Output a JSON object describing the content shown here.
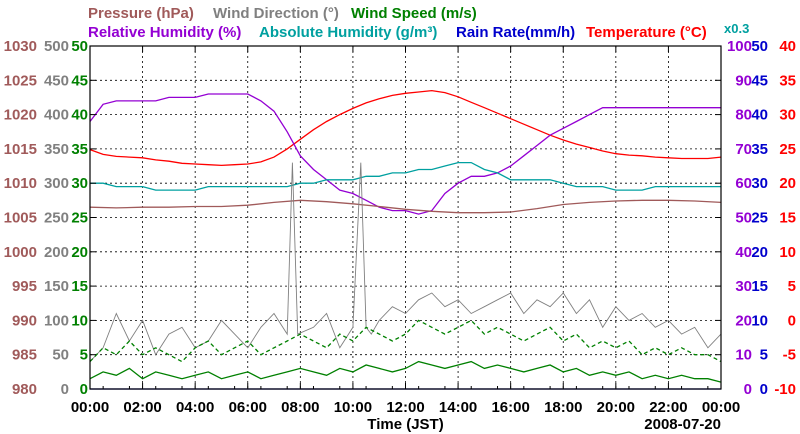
{
  "chart_data": {
    "type": "line",
    "date": "2008-07-20",
    "xlabel": "Time (JST)",
    "x_ticks": [
      "00:00",
      "02:00",
      "04:00",
      "06:00",
      "08:00",
      "10:00",
      "12:00",
      "14:00",
      "16:00",
      "18:00",
      "20:00",
      "22:00",
      "00:00"
    ],
    "grid": true,
    "legend_placement": "top",
    "legend": [
      {
        "name": "Pressure (hPa)",
        "color": "#a05a5a"
      },
      {
        "name": "Wind Direction (°)",
        "color": "#808080"
      },
      {
        "name": "Wind Speed (m/s)",
        "color": "#008000"
      },
      {
        "name": "Relative Humidity (%)",
        "color": "#9400d3"
      },
      {
        "name": "Absolute Humidity (g/m³)",
        "color": "#00a0a0",
        "scale_note": "x0.3"
      },
      {
        "name": "Rain Rate(mm/h)",
        "color": "#0000cc"
      },
      {
        "name": "Temperature (°C)",
        "color": "#ff0000"
      }
    ],
    "axes": [
      {
        "id": "pressure",
        "side": "left",
        "color": "#a05a5a",
        "range": [
          980,
          1030
        ],
        "ticks": [
          "980",
          "985",
          "990",
          "995",
          "1000",
          "1005",
          "1010",
          "1015",
          "1020",
          "1025",
          "1030"
        ]
      },
      {
        "id": "wind_direction",
        "side": "left",
        "color": "#808080",
        "range": [
          0,
          500
        ],
        "ticks": [
          "0",
          "50",
          "100",
          "150",
          "200",
          "250",
          "300",
          "350",
          "400",
          "450",
          "500"
        ]
      },
      {
        "id": "wind_speed",
        "side": "left",
        "color": "#008000",
        "range": [
          0,
          50
        ],
        "ticks": [
          "0",
          "5",
          "10",
          "15",
          "20",
          "25",
          "30",
          "35",
          "40",
          "45",
          "50"
        ]
      },
      {
        "id": "humidity",
        "side": "right",
        "color": "#9400d3",
        "range": [
          0,
          100
        ],
        "ticks": [
          "0",
          "10",
          "20",
          "30",
          "40",
          "50",
          "60",
          "70",
          "80",
          "90",
          "100"
        ]
      },
      {
        "id": "rain_rate",
        "side": "right",
        "color": "#0000cc",
        "range": [
          0,
          50
        ],
        "ticks": [
          "0",
          "5",
          "10",
          "15",
          "20",
          "25",
          "30",
          "35",
          "40",
          "45",
          "50"
        ]
      },
      {
        "id": "temperature",
        "side": "right",
        "color": "#ff0000",
        "range": [
          -10,
          40
        ],
        "ticks": [
          "-10",
          "-5",
          "0",
          "5",
          "10",
          "15",
          "20",
          "25",
          "30",
          "35",
          "40"
        ]
      }
    ],
    "series": [
      {
        "name": "Temperature (°C)",
        "axis": "temperature",
        "color": "#ff0000",
        "x": [
          0,
          0.5,
          1,
          1.5,
          2,
          2.5,
          3,
          3.5,
          4,
          4.5,
          5,
          5.5,
          6,
          6.5,
          7,
          7.5,
          8,
          8.5,
          9,
          9.5,
          10,
          10.5,
          11,
          11.5,
          12,
          12.5,
          13,
          13.5,
          14,
          14.5,
          15,
          15.5,
          16,
          16.5,
          17,
          17.5,
          18,
          18.5,
          19,
          19.5,
          20,
          20.5,
          21,
          21.5,
          22,
          22.5,
          23,
          23.5,
          24
        ],
        "y": [
          24.9,
          24.2,
          23.9,
          23.8,
          23.7,
          23.4,
          23.2,
          22.9,
          22.8,
          22.7,
          22.6,
          22.7,
          22.8,
          23.1,
          23.8,
          25.0,
          26.4,
          27.8,
          29.0,
          30.0,
          30.9,
          31.7,
          32.3,
          32.8,
          33.1,
          33.3,
          33.5,
          33.2,
          32.6,
          31.8,
          31.0,
          30.2,
          29.4,
          28.6,
          27.8,
          27.0,
          26.3,
          25.7,
          25.2,
          24.7,
          24.3,
          24.1,
          24.0,
          23.8,
          23.7,
          23.6,
          23.6,
          23.6,
          23.8
        ]
      },
      {
        "name": "Relative Humidity (%)",
        "axis": "humidity",
        "color": "#9400d3",
        "x": [
          0,
          0.5,
          1,
          1.5,
          2,
          2.5,
          3,
          3.5,
          4,
          4.5,
          5,
          5.5,
          6,
          6.5,
          7,
          7.5,
          8,
          8.5,
          9,
          9.5,
          10,
          10.5,
          11,
          11.5,
          12,
          12.5,
          13,
          13.5,
          14,
          14.5,
          15,
          15.5,
          16,
          16.5,
          17,
          17.5,
          18,
          18.5,
          19,
          19.5,
          20,
          20.5,
          21,
          21.5,
          22,
          22.5,
          23,
          23.5,
          24
        ],
        "y": [
          78,
          83,
          84,
          84,
          84,
          84,
          85,
          85,
          85,
          86,
          86,
          86,
          86,
          84,
          81,
          75,
          68,
          64,
          61,
          58,
          57,
          55,
          53,
          52,
          52,
          51,
          52,
          57,
          60,
          62,
          62,
          63,
          65,
          68,
          71,
          74,
          76,
          78,
          80,
          82,
          82,
          82,
          82,
          82,
          82,
          82,
          82,
          82,
          82
        ]
      },
      {
        "name": "Absolute Humidity (g/m³)",
        "axis": "humidity",
        "color": "#00a0a0",
        "x": [
          0,
          0.5,
          1,
          1.5,
          2,
          2.5,
          3,
          3.5,
          4,
          4.5,
          5,
          5.5,
          6,
          6.5,
          7,
          7.5,
          8,
          8.5,
          9,
          9.5,
          10,
          10.5,
          11,
          11.5,
          12,
          12.5,
          13,
          13.5,
          14,
          14.5,
          15,
          15.5,
          16,
          16.5,
          17,
          17.5,
          18,
          18.5,
          19,
          19.5,
          20,
          20.5,
          21,
          21.5,
          22,
          22.5,
          23,
          23.5,
          24
        ],
        "y": [
          60,
          60,
          59,
          59,
          59,
          58,
          58,
          58,
          58,
          59,
          59,
          59,
          59,
          59,
          59,
          59,
          60,
          60,
          61,
          61,
          61,
          62,
          62,
          63,
          63,
          64,
          64,
          65,
          66,
          66,
          64,
          63,
          61,
          61,
          61,
          61,
          60,
          59,
          59,
          59,
          58,
          58,
          58,
          59,
          59,
          59,
          59,
          59,
          59
        ]
      },
      {
        "name": "Pressure (hPa)",
        "axis": "pressure",
        "color": "#a05a5a",
        "x": [
          0,
          1,
          2,
          3,
          4,
          5,
          6,
          7,
          8,
          9,
          10,
          11,
          12,
          13,
          14,
          15,
          16,
          17,
          18,
          19,
          20,
          21,
          22,
          23,
          24
        ],
        "y": [
          1006.5,
          1006.4,
          1006.5,
          1006.5,
          1006.6,
          1006.6,
          1006.8,
          1007.2,
          1007.5,
          1007.3,
          1007.0,
          1006.6,
          1006.2,
          1005.9,
          1005.7,
          1005.7,
          1005.8,
          1006.3,
          1006.9,
          1007.2,
          1007.4,
          1007.5,
          1007.5,
          1007.4,
          1007.2
        ]
      },
      {
        "name": "Wind Direction (°)",
        "axis": "wind_direction",
        "color": "#808080",
        "x": [
          0,
          0.5,
          1,
          1.5,
          2,
          2.5,
          3,
          3.5,
          4,
          4.5,
          5,
          5.5,
          6,
          6.5,
          7,
          7.5,
          7.7,
          7.9,
          8.5,
          9,
          9.5,
          10,
          10.3,
          10.5,
          10.7,
          11,
          11.5,
          12,
          12.5,
          13,
          13.5,
          14,
          14.5,
          15,
          15.5,
          16,
          16.5,
          17,
          17.5,
          18,
          18.5,
          19,
          19.5,
          20,
          20.5,
          21,
          21.5,
          22,
          22.5,
          23,
          23.5,
          24
        ],
        "y": [
          40,
          60,
          110,
          70,
          100,
          50,
          80,
          90,
          60,
          70,
          100,
          80,
          60,
          90,
          110,
          80,
          330,
          80,
          90,
          110,
          60,
          90,
          330,
          90,
          80,
          100,
          120,
          110,
          130,
          140,
          120,
          130,
          110,
          120,
          130,
          140,
          110,
          130,
          120,
          140,
          110,
          130,
          90,
          120,
          100,
          110,
          90,
          100,
          80,
          90,
          60,
          80
        ]
      },
      {
        "name": "Wind Speed (m/s)",
        "axis": "wind_speed",
        "color": "#008000",
        "x": [
          0,
          0.5,
          1,
          1.5,
          2,
          2.5,
          3,
          3.5,
          4,
          4.5,
          5,
          5.5,
          6,
          6.5,
          7,
          7.5,
          8,
          8.5,
          9,
          9.5,
          10,
          10.5,
          11,
          11.5,
          12,
          12.5,
          13,
          13.5,
          14,
          14.5,
          15,
          15.5,
          16,
          16.5,
          17,
          17.5,
          18,
          18.5,
          19,
          19.5,
          20,
          20.5,
          21,
          21.5,
          22,
          22.5,
          23,
          23.5,
          24
        ],
        "y": [
          1.5,
          2.5,
          2.0,
          3.0,
          1.5,
          2.5,
          2.0,
          1.5,
          2.0,
          2.5,
          1.5,
          2.0,
          2.5,
          1.5,
          2.0,
          2.5,
          3.0,
          2.5,
          2.0,
          3.0,
          2.5,
          3.5,
          3.0,
          2.5,
          3.0,
          4.0,
          3.5,
          3.0,
          3.5,
          4.0,
          3.0,
          3.5,
          3.0,
          2.5,
          3.0,
          3.5,
          2.5,
          3.0,
          2.0,
          2.5,
          2.0,
          2.5,
          1.5,
          2.0,
          1.5,
          2.0,
          1.5,
          1.5,
          1.0
        ]
      },
      {
        "name": "Wind Speed (m/s) gust",
        "axis": "wind_speed",
        "color": "#008000",
        "dashed": true,
        "x": [
          0,
          0.5,
          1,
          1.5,
          2,
          2.5,
          3,
          3.5,
          4,
          4.5,
          5,
          5.5,
          6,
          6.5,
          7,
          7.5,
          8,
          8.5,
          9,
          9.5,
          10,
          10.5,
          11,
          11.5,
          12,
          12.5,
          13,
          13.5,
          14,
          14.5,
          15,
          15.5,
          16,
          16.5,
          17,
          17.5,
          18,
          18.5,
          19,
          19.5,
          20,
          20.5,
          21,
          21.5,
          22,
          22.5,
          23,
          23.5,
          24
        ],
        "y": [
          4,
          6,
          5,
          7,
          5,
          6,
          5,
          4,
          6,
          7,
          5,
          6,
          7,
          5,
          6,
          7,
          8,
          7,
          6,
          8,
          7,
          9,
          8,
          7,
          8,
          10,
          9,
          8,
          9,
          10,
          8,
          9,
          8,
          7,
          8,
          9,
          7,
          8,
          6,
          7,
          6,
          7,
          5,
          6,
          5,
          6,
          5,
          5,
          4
        ]
      },
      {
        "name": "Rain Rate(mm/h)",
        "axis": "rain_rate",
        "color": "#0000cc",
        "x": [
          0,
          24
        ],
        "y": [
          0,
          0
        ]
      }
    ]
  }
}
